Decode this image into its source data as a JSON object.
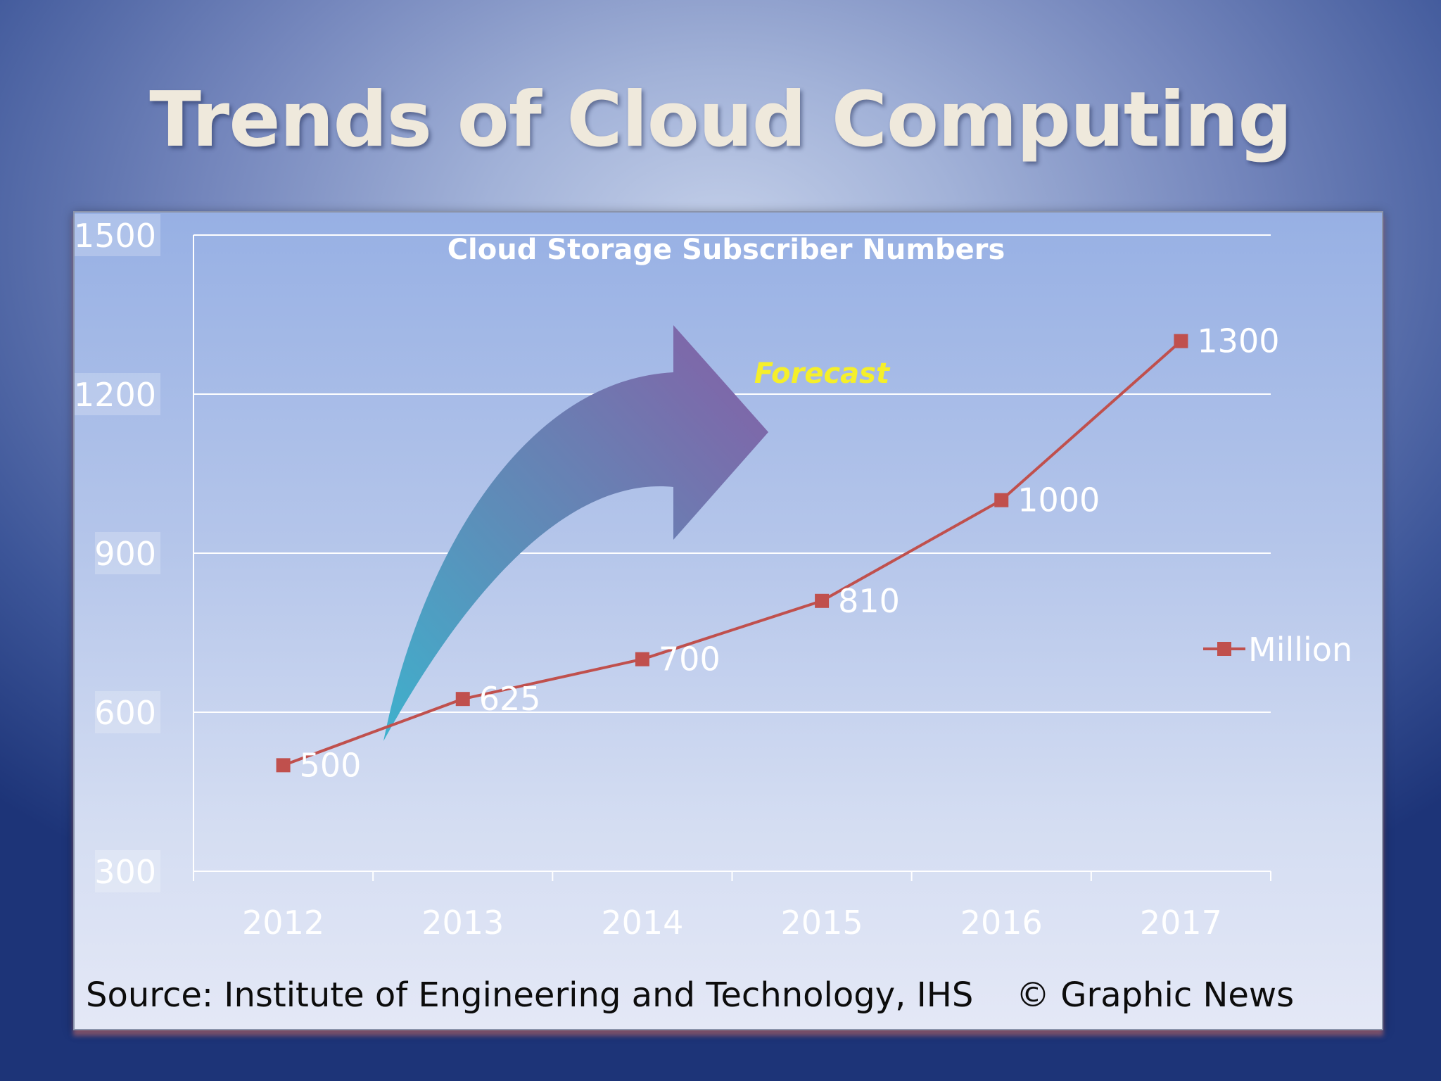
{
  "slide": {
    "title": "Trends of Cloud Computing",
    "source": "Source: Institute of Engineering and Technology, IHS",
    "copyright": "© Graphic News"
  },
  "chart_data": {
    "type": "line",
    "title": "Cloud Storage Subscriber Numbers",
    "annotation": "Forecast",
    "categories": [
      "2012",
      "2013",
      "2014",
      "2015",
      "2016",
      "2017"
    ],
    "series": [
      {
        "name": "Million",
        "values": [
          500,
          625,
          700,
          810,
          1000,
          1300
        ],
        "color": "#c0504d"
      }
    ],
    "data_labels": [
      "500",
      "625",
      "700",
      "810",
      "1000",
      "1300"
    ],
    "yticks": [
      300,
      600,
      900,
      1200,
      1500
    ],
    "ylim": [
      300,
      1500
    ],
    "grid": true,
    "legend": "right",
    "colors": {
      "line": "#c0504d",
      "annotation": "#f5ef2a",
      "labels": "#ffffff",
      "arrow_start": "#3fb0cc",
      "arrow_end": "#8164a8"
    }
  }
}
